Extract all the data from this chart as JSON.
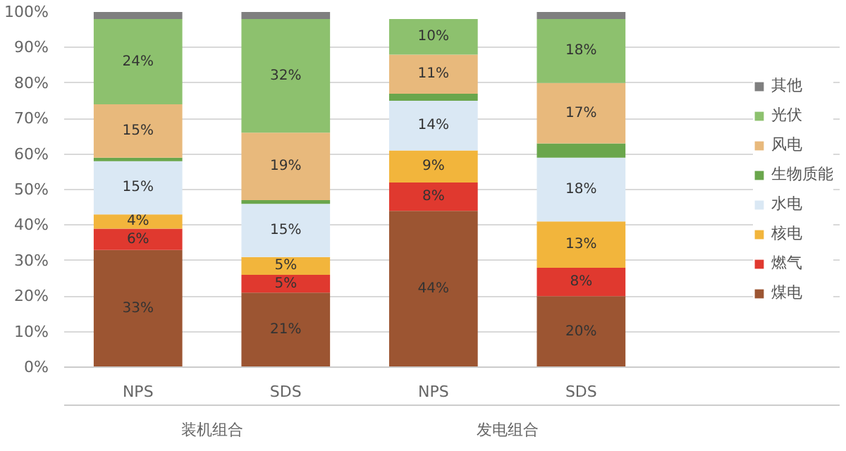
{
  "chart_data": {
    "type": "bar",
    "stacked": true,
    "categories": [
      "NPS",
      "SDS",
      "NPS",
      "SDS"
    ],
    "annotations": [
      "装机组合",
      "发电组合"
    ],
    "series": [
      {
        "name": "煤电",
        "color": "#9c5532",
        "values": [
          33,
          21,
          44,
          20
        ],
        "value_labels": [
          "33%",
          "21%",
          "44%",
          "20%"
        ]
      },
      {
        "name": "燃气",
        "color": "#e0392f",
        "values": [
          6,
          5,
          8,
          8
        ],
        "value_labels": [
          "6%",
          "5%",
          "8%",
          "8%"
        ]
      },
      {
        "name": "核电",
        "color": "#f2b53c",
        "values": [
          4,
          5,
          9,
          13
        ],
        "value_labels": [
          "4%",
          "5%",
          "9%",
          "13%"
        ]
      },
      {
        "name": "水电",
        "color": "#dae8f4",
        "values": [
          15,
          15,
          14,
          18
        ],
        "value_labels": [
          "15%",
          "15%",
          "14%",
          "18%"
        ]
      },
      {
        "name": "生物质能",
        "color": "#6aa64c",
        "values": [
          1,
          1,
          2,
          4
        ],
        "value_labels": [
          null,
          null,
          null,
          null
        ]
      },
      {
        "name": "风电",
        "color": "#e8b97c",
        "values": [
          15,
          19,
          11,
          17
        ],
        "value_labels": [
          "15%",
          "19%",
          "11%",
          "17%"
        ]
      },
      {
        "name": "光伏",
        "color": "#8dc16e",
        "values": [
          24,
          32,
          10,
          18
        ],
        "value_labels": [
          "24%",
          "32%",
          "10%",
          "18%"
        ]
      },
      {
        "name": "其他",
        "color": "#7f7f7f",
        "values": [
          2,
          2,
          0,
          2
        ],
        "value_labels": [
          null,
          null,
          null,
          null
        ]
      }
    ],
    "ylim": [
      0,
      100
    ],
    "yticks": [
      {
        "value": 0,
        "label": "0%"
      },
      {
        "value": 10,
        "label": "10%"
      },
      {
        "value": 20,
        "label": "20%"
      },
      {
        "value": 30,
        "label": "30%"
      },
      {
        "value": 40,
        "label": "40%"
      },
      {
        "value": 50,
        "label": "50%"
      },
      {
        "value": 60,
        "label": "60%"
      },
      {
        "value": 70,
        "label": "70%"
      },
      {
        "value": 80,
        "label": "80%"
      },
      {
        "value": 90,
        "label": "90%"
      },
      {
        "value": 100,
        "label": "100%"
      }
    ],
    "grid": "y",
    "legend": "right"
  }
}
